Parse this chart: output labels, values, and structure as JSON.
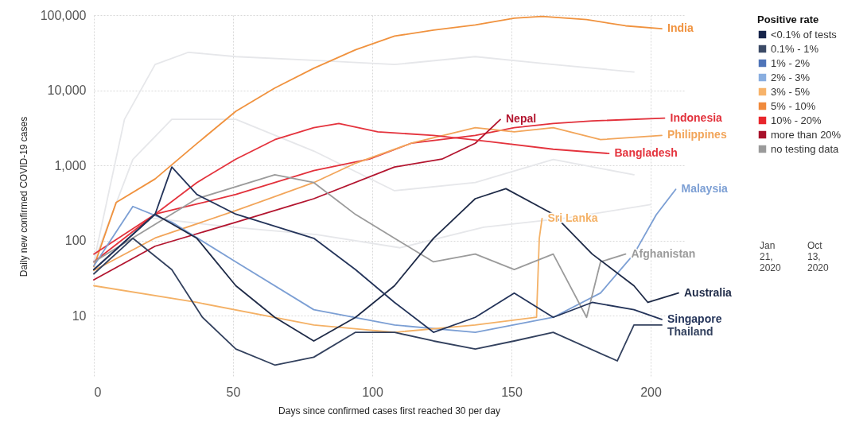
{
  "chart_data": {
    "type": "line",
    "xlabel": "Days since confirmed cases first reached 30 per day",
    "ylabel": "Daily new confirmed COVID-19 cases",
    "legend_title": "Positive rate",
    "legend": "right",
    "log": "y",
    "grid": true,
    "xlim": [
      0,
      212
    ],
    "xticks": [
      0,
      50,
      100,
      150,
      200
    ],
    "ylim": [
      1.5,
      100000
    ],
    "yticks": [
      10,
      100,
      {
        "value": 1000,
        "label": "1,000"
      },
      {
        "value": 10000,
        "label": "10,000"
      },
      {
        "value": 100000,
        "label": "100,000"
      }
    ],
    "annotations": [
      "Jan 21, 2020",
      "Oct 13, 2020"
    ],
    "series": [
      {
        "color": "#e6e7ea",
        "x": [
          0,
          11,
          22,
          34,
          51,
          79,
          108,
          137,
          165,
          194
        ],
        "values": [
          52,
          4100,
          22000,
          32000,
          28000,
          25000,
          22000,
          28000,
          22000,
          17500
        ]
      },
      {
        "color": "#e6e7ea",
        "x": [
          0,
          14,
          28,
          51,
          79,
          108,
          137,
          165,
          194
        ],
        "values": [
          52,
          1200,
          4100,
          4100,
          1550,
          460,
          590,
          1200,
          750
        ]
      },
      {
        "color": "#e6e7ea",
        "x": [
          0,
          20,
          50,
          80,
          110,
          140,
          170,
          200
        ],
        "values": [
          40,
          200,
          150,
          120,
          80,
          150,
          200,
          300
        ]
      },
      {
        "name": "India",
        "color": "#f0923e",
        "x": [
          0,
          8,
          22,
          37,
          51,
          65,
          79,
          94,
          108,
          122,
          137,
          151,
          161,
          177,
          191,
          204
        ],
        "values": [
          45,
          320,
          660,
          1950,
          5250,
          10700,
          19600,
          34600,
          52600,
          63000,
          74000,
          91000,
          96000,
          87000,
          72000,
          66000
        ]
      },
      {
        "name": "Indonesia",
        "color": "#e2313b",
        "x": [
          0,
          22,
          51,
          79,
          99,
          114,
          137,
          151,
          165,
          179,
          205
        ],
        "values": [
          52,
          224,
          410,
          850,
          1210,
          1970,
          2500,
          3170,
          3600,
          3900,
          4260
        ]
      },
      {
        "name": "Philippines",
        "color": "#f2a55a",
        "x": [
          0,
          22,
          51,
          79,
          94,
          114,
          137,
          151,
          165,
          182,
          204
        ],
        "values": [
          40,
          108,
          250,
          590,
          1070,
          1970,
          3170,
          2800,
          3170,
          2200,
          2500
        ]
      },
      {
        "name": "Nepal",
        "color": "#b3152f",
        "x": [
          0,
          22,
          51,
          79,
          108,
          125,
          137,
          146
        ],
        "values": [
          30,
          84,
          175,
          360,
          950,
          1210,
          1970,
          4070
        ]
      },
      {
        "name": "Bangladesh",
        "color": "#e4333d",
        "x": [
          0,
          22,
          37,
          51,
          65,
          79,
          88,
          102,
          122,
          142,
          165,
          185
        ],
        "values": [
          66,
          224,
          590,
          1210,
          2200,
          3170,
          3600,
          2800,
          2500,
          2070,
          1640,
          1440
        ]
      },
      {
        "name": "Malaysia",
        "color": "#7c9fd4",
        "x": [
          0,
          14,
          28,
          51,
          79,
          108,
          137,
          165,
          182,
          194,
          202,
          209
        ],
        "values": [
          46,
          284,
          175,
          52,
          12,
          7.5,
          6,
          9.5,
          20,
          66,
          220,
          480
        ]
      },
      {
        "name": "Sri Lanka",
        "color": "#f4b166",
        "x": [
          0,
          37,
          79,
          108,
          137,
          159,
          160,
          161
        ],
        "values": [
          25,
          15,
          7.5,
          6,
          7.5,
          9.5,
          107,
          196
        ]
      },
      {
        "name": "Afghanistan",
        "color": "#9b9b9b",
        "x": [
          0,
          37,
          65,
          79,
          94,
          108,
          122,
          137,
          151,
          165,
          177,
          182,
          191
        ],
        "values": [
          52,
          360,
          750,
          590,
          222,
          107,
          52,
          66,
          41,
          66,
          9.5,
          52,
          66
        ]
      },
      {
        "name": "Australia",
        "color": "#1e2a47",
        "x": [
          0,
          22,
          37,
          51,
          65,
          79,
          94,
          108,
          122,
          137,
          148,
          165,
          179,
          194,
          199,
          210
        ],
        "values": [
          41,
          224,
          107,
          25,
          9.5,
          4.6,
          9.5,
          25,
          107,
          360,
          490,
          224,
          66,
          25,
          15,
          20
        ]
      },
      {
        "name": "Singapore",
        "color": "#24345a",
        "x": [
          0,
          22,
          28,
          37,
          51,
          79,
          94,
          108,
          122,
          137,
          151,
          165,
          179,
          194,
          204
        ],
        "values": [
          41,
          224,
          950,
          410,
          224,
          107,
          41,
          15,
          6,
          9.5,
          20,
          9.5,
          15,
          12,
          8.9
        ]
      },
      {
        "name": "Thailand",
        "color": "#33415e",
        "x": [
          0,
          14,
          28,
          39,
          51,
          65,
          79,
          94,
          108,
          122,
          137,
          151,
          165,
          188,
          194,
          204
        ],
        "values": [
          36,
          107,
          41,
          9.5,
          3.6,
          2.2,
          2.8,
          6,
          6,
          4.6,
          3.6,
          4.6,
          6,
          2.5,
          7.5,
          7.5
        ]
      },
      {
        "name": "<0.1% of tests",
        "color": "#16244a"
      },
      {
        "name": "0.1% - 1%",
        "color": "#3b4a66"
      },
      {
        "name": "1% - 2%",
        "color": "#4f74b8"
      },
      {
        "name": "2% - 3%",
        "color": "#89aee0"
      },
      {
        "name": "3% - 5%",
        "color": "#f7b36a"
      },
      {
        "name": "5% - 10%",
        "color": "#f08a3c"
      },
      {
        "name": "10% - 20%",
        "color": "#e8262c"
      },
      {
        "name": "more than 20%",
        "color": "#a8102a"
      },
      {
        "name": "no testing data",
        "color": "#9a9a9a"
      }
    ]
  }
}
